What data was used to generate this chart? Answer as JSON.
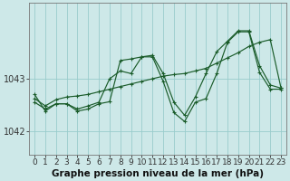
{
  "title": "Graphe pression niveau de la mer (hPa)",
  "background_color": "#cde8e8",
  "plot_bg_color": "#cde8e8",
  "grid_color": "#99cccc",
  "line_color": "#1a5c2a",
  "x_labels": [
    "0",
    "1",
    "2",
    "3",
    "4",
    "5",
    "6",
    "7",
    "8",
    "9",
    "10",
    "11",
    "12",
    "13",
    "14",
    "15",
    "16",
    "17",
    "18",
    "19",
    "20",
    "21",
    "22",
    "23"
  ],
  "ylim": [
    1041.55,
    1044.45
  ],
  "yticks": [
    1042,
    1043
  ],
  "series_jagged": [
    1042.7,
    1042.38,
    1042.52,
    1042.52,
    1042.38,
    1042.42,
    1042.52,
    1042.56,
    1043.35,
    1043.38,
    1043.42,
    1043.42,
    1042.95,
    1042.35,
    1042.18,
    1042.55,
    1042.62,
    1043.1,
    1043.7,
    1043.9,
    1043.9,
    1043.12,
    1042.8,
    1042.8
  ],
  "series_medium": [
    1042.55,
    1042.42,
    1042.52,
    1042.52,
    1042.42,
    1042.48,
    1042.55,
    1043.0,
    1043.15,
    1043.1,
    1043.42,
    1043.45,
    1043.1,
    1042.55,
    1042.3,
    1042.65,
    1043.1,
    1043.52,
    1043.72,
    1043.92,
    1043.92,
    1043.25,
    1042.88,
    1042.82
  ],
  "series_trend": [
    1042.62,
    1042.48,
    1042.6,
    1042.65,
    1042.67,
    1042.7,
    1042.75,
    1042.8,
    1042.85,
    1042.9,
    1042.95,
    1043.0,
    1043.05,
    1043.08,
    1043.1,
    1043.15,
    1043.2,
    1043.3,
    1043.4,
    1043.5,
    1043.62,
    1043.7,
    1043.75,
    1042.82
  ],
  "xlabel_fontsize": 6.5,
  "ylabel_fontsize": 7,
  "title_fontsize": 7.5
}
